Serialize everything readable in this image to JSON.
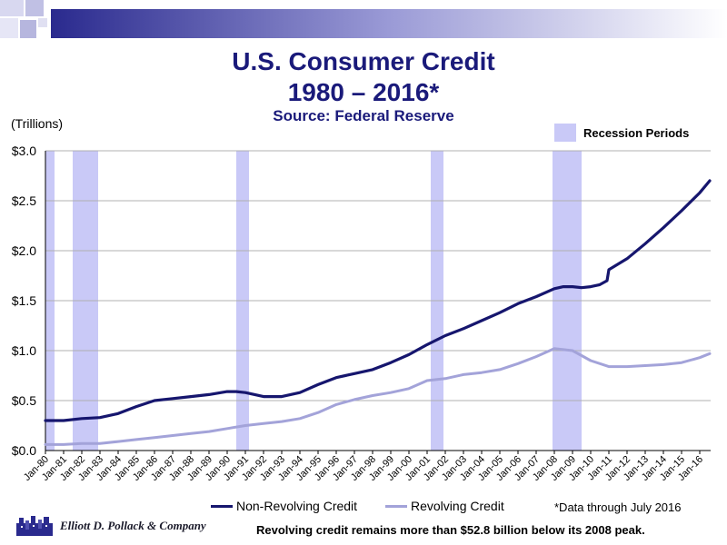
{
  "title": "U.S. Consumer Credit",
  "subtitle": "1980 – 2016*",
  "source": "Source: Federal Reserve",
  "units_label": "(Trillions)",
  "recession_legend": "Recession Periods",
  "footnote": "*Data through  July 2016",
  "bottom_note": "Revolving credit remains more than $52.8 billion below its 2008 peak.",
  "company": "Elliott D. Pollack & Company",
  "colors": {
    "non_revolving": "#16166e",
    "revolving": "#a3a3d9",
    "recession": "#c9c9f7",
    "title": "#1a1a7a"
  },
  "chart_data": {
    "type": "line",
    "title": "U.S. Consumer Credit 1980 – 2016*",
    "ylabel": "(Trillions)",
    "ylim": [
      0,
      3.0
    ],
    "yticks": [
      0,
      0.5,
      1.0,
      1.5,
      2.0,
      2.5,
      3.0
    ],
    "ytick_labels": [
      "$0.0",
      "$0.5",
      "$1.0",
      "$1.5",
      "$2.0",
      "$2.5",
      "$3.0"
    ],
    "xlim": [
      1980,
      2016.6
    ],
    "xticks": [
      1980,
      1981,
      1982,
      1983,
      1984,
      1985,
      1986,
      1987,
      1988,
      1989,
      1990,
      1991,
      1992,
      1993,
      1994,
      1995,
      1996,
      1997,
      1998,
      1999,
      2000,
      2001,
      2002,
      2003,
      2004,
      2005,
      2006,
      2007,
      2008,
      2009,
      2010,
      2011,
      2012,
      2013,
      2014,
      2015,
      2016
    ],
    "xtick_labels": [
      "Jan-80",
      "Jan-81",
      "Jan-82",
      "Jan-83",
      "Jan-84",
      "Jan-85",
      "Jan-86",
      "Jan-87",
      "Jan-88",
      "Jan-89",
      "Jan-90",
      "Jan-91",
      "Jan-92",
      "Jan-93",
      "Jan-94",
      "Jan-95",
      "Jan-96",
      "Jan-97",
      "Jan-98",
      "Jan-99",
      "Jan-00",
      "Jan-01",
      "Jan-02",
      "Jan-03",
      "Jan-04",
      "Jan-05",
      "Jan-06",
      "Jan-07",
      "Jan-08",
      "Jan-09",
      "Jan-10",
      "Jan-11",
      "Jan-12",
      "Jan-13",
      "Jan-14",
      "Jan-15",
      "Jan-16"
    ],
    "recessions": [
      [
        1980.0,
        1980.5
      ],
      [
        1981.5,
        1982.9
      ],
      [
        1990.5,
        1991.2
      ],
      [
        2001.2,
        2001.9
      ],
      [
        2007.9,
        2009.5
      ]
    ],
    "series": [
      {
        "name": "Non-Revolving Credit",
        "x": [
          1980,
          1981,
          1982,
          1983,
          1984,
          1985,
          1986,
          1987,
          1988,
          1989,
          1990,
          1990.5,
          1991,
          1992,
          1993,
          1994,
          1995,
          1996,
          1997,
          1998,
          1999,
          2000,
          2001,
          2002,
          2003,
          2004,
          2005,
          2006,
          2007,
          2008,
          2008.5,
          2009,
          2009.5,
          2010,
          2010.5,
          2010.9,
          2011.0,
          2012,
          2013,
          2014,
          2015,
          2016,
          2016.55
        ],
        "y": [
          0.3,
          0.3,
          0.32,
          0.33,
          0.37,
          0.44,
          0.5,
          0.52,
          0.54,
          0.56,
          0.59,
          0.59,
          0.58,
          0.54,
          0.54,
          0.58,
          0.66,
          0.73,
          0.77,
          0.81,
          0.88,
          0.96,
          1.06,
          1.15,
          1.22,
          1.3,
          1.38,
          1.47,
          1.54,
          1.62,
          1.64,
          1.64,
          1.63,
          1.64,
          1.66,
          1.7,
          1.81,
          1.92,
          2.07,
          2.23,
          2.4,
          2.58,
          2.7
        ]
      },
      {
        "name": "Revolving Credit",
        "x": [
          1980,
          1981,
          1982,
          1983,
          1984,
          1985,
          1986,
          1987,
          1988,
          1989,
          1990,
          1991,
          1992,
          1993,
          1994,
          1995,
          1996,
          1997,
          1998,
          1999,
          2000,
          2001,
          2002,
          2003,
          2004,
          2005,
          2006,
          2007,
          2008,
          2009,
          2010,
          2011,
          2012,
          2013,
          2014,
          2015,
          2016,
          2016.55
        ],
        "y": [
          0.06,
          0.06,
          0.07,
          0.07,
          0.09,
          0.11,
          0.13,
          0.15,
          0.17,
          0.19,
          0.22,
          0.25,
          0.27,
          0.29,
          0.32,
          0.38,
          0.46,
          0.51,
          0.55,
          0.58,
          0.62,
          0.7,
          0.72,
          0.76,
          0.78,
          0.81,
          0.87,
          0.94,
          1.02,
          1.0,
          0.9,
          0.84,
          0.84,
          0.85,
          0.86,
          0.88,
          0.93,
          0.97
        ]
      }
    ]
  }
}
